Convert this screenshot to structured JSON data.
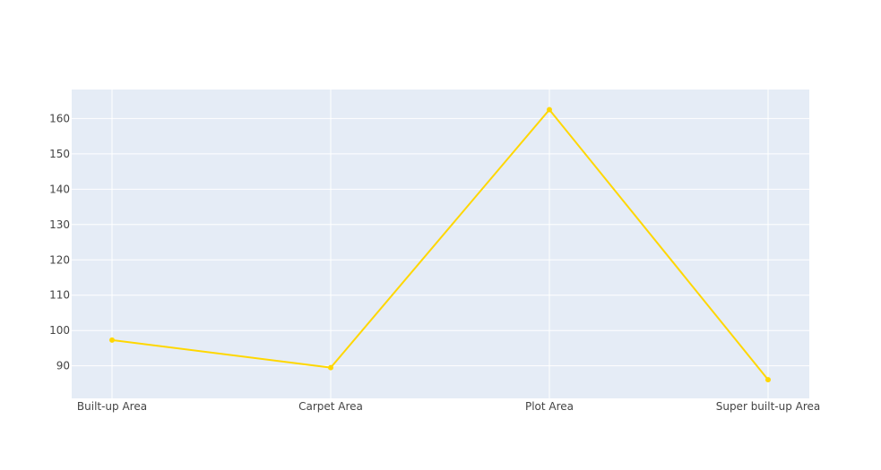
{
  "chart_data": {
    "type": "line",
    "categories": [
      "Built-up  Area",
      "Carpet  Area",
      "Plot  Area",
      "Super built-up  Area"
    ],
    "series": [
      {
        "values": [
          97.3,
          89.5,
          162.5,
          86.1
        ]
      }
    ],
    "ylim": [
      80.8,
      168.2
    ],
    "yticks": [
      90,
      100,
      110,
      120,
      130,
      140,
      150,
      160
    ],
    "grid": true,
    "legend": "none",
    "colors": {
      "line": "#FFD700",
      "plot_background": "#E5ECF6",
      "grid": "#FFFFFF",
      "tick_text": "#444444"
    }
  }
}
